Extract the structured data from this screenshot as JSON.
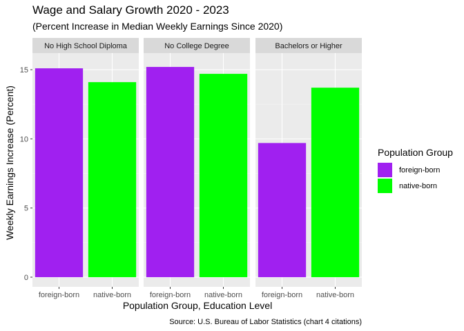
{
  "chart_data": {
    "type": "bar",
    "title": "Wage and Salary Growth 2020 - 2023",
    "subtitle": "(Percent Increase in Median Weekly Earnings Since 2020)",
    "xlabel": "Population Group, Education Level",
    "ylabel": "Weekly Earnings Increase (Percent)",
    "caption": "Source: U.S. Bureau of Labor Statistics (chart 4 citations)",
    "ylim": [
      -0.7,
      16.2
    ],
    "yticks": [
      0,
      5,
      10,
      15
    ],
    "grid": true,
    "legend": {
      "title": "Population Group",
      "position": "right",
      "entries": [
        {
          "label": "foreign-born",
          "color": "#A020F0"
        },
        {
          "label": "native-born",
          "color": "#00FF00"
        }
      ]
    },
    "categories": [
      "foreign-born",
      "native-born"
    ],
    "facets": [
      {
        "label": "No High School Diploma",
        "values": [
          15.1,
          14.1
        ]
      },
      {
        "label": "No College Degree",
        "values": [
          15.2,
          14.7
        ]
      },
      {
        "label": "Bachelors or Higher",
        "values": [
          9.7,
          13.7
        ]
      }
    ]
  }
}
